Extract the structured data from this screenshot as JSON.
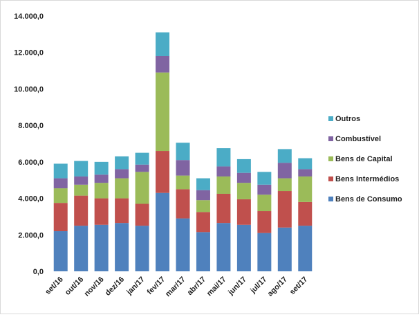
{
  "chart_data": {
    "type": "bar",
    "stacked": true,
    "categories": [
      "set/16",
      "out/16",
      "nov/16",
      "dez/16",
      "jan/17",
      "fev/17",
      "mar/17",
      "abr/17",
      "mai/17",
      "jun/17",
      "jul/17",
      "ago/17",
      "set/17"
    ],
    "series": [
      {
        "name": "Bens de Consumo",
        "color": "#4f81bd",
        "values": [
          2200,
          2500,
          2550,
          2650,
          2500,
          4300,
          2900,
          2150,
          2650,
          2550,
          2100,
          2400,
          2500
        ]
      },
      {
        "name": "Bens Intermédios",
        "color": "#c0504d",
        "values": [
          1550,
          1650,
          1450,
          1350,
          1200,
          2300,
          1600,
          1100,
          1600,
          1400,
          1200,
          2000,
          1300
        ]
      },
      {
        "name": "Bens de Capital",
        "color": "#9bbb59",
        "values": [
          800,
          600,
          850,
          1100,
          1750,
          4300,
          750,
          650,
          950,
          900,
          900,
          700,
          1400
        ]
      },
      {
        "name": "Combustível",
        "color": "#8064a2",
        "values": [
          550,
          450,
          450,
          500,
          400,
          900,
          850,
          550,
          550,
          550,
          550,
          850,
          400
        ]
      },
      {
        "name": "Outros",
        "color": "#4bacc6",
        "values": [
          800,
          850,
          700,
          700,
          650,
          1300,
          950,
          650,
          1000,
          750,
          700,
          750,
          600
        ]
      }
    ],
    "yticks": [
      "0,0",
      "2.000,0",
      "4.000,0",
      "6.000,0",
      "8.000,0",
      "10.000,0",
      "12.000,0",
      "14.000,0"
    ],
    "ylim": [
      0,
      14000
    ],
    "grid": false,
    "legend_position": "right",
    "legend_order": [
      "Outros",
      "Combustível",
      "Bens de Capital",
      "Bens Intermédios",
      "Bens de Consumo"
    ],
    "title": "",
    "xlabel": "",
    "ylabel": ""
  }
}
